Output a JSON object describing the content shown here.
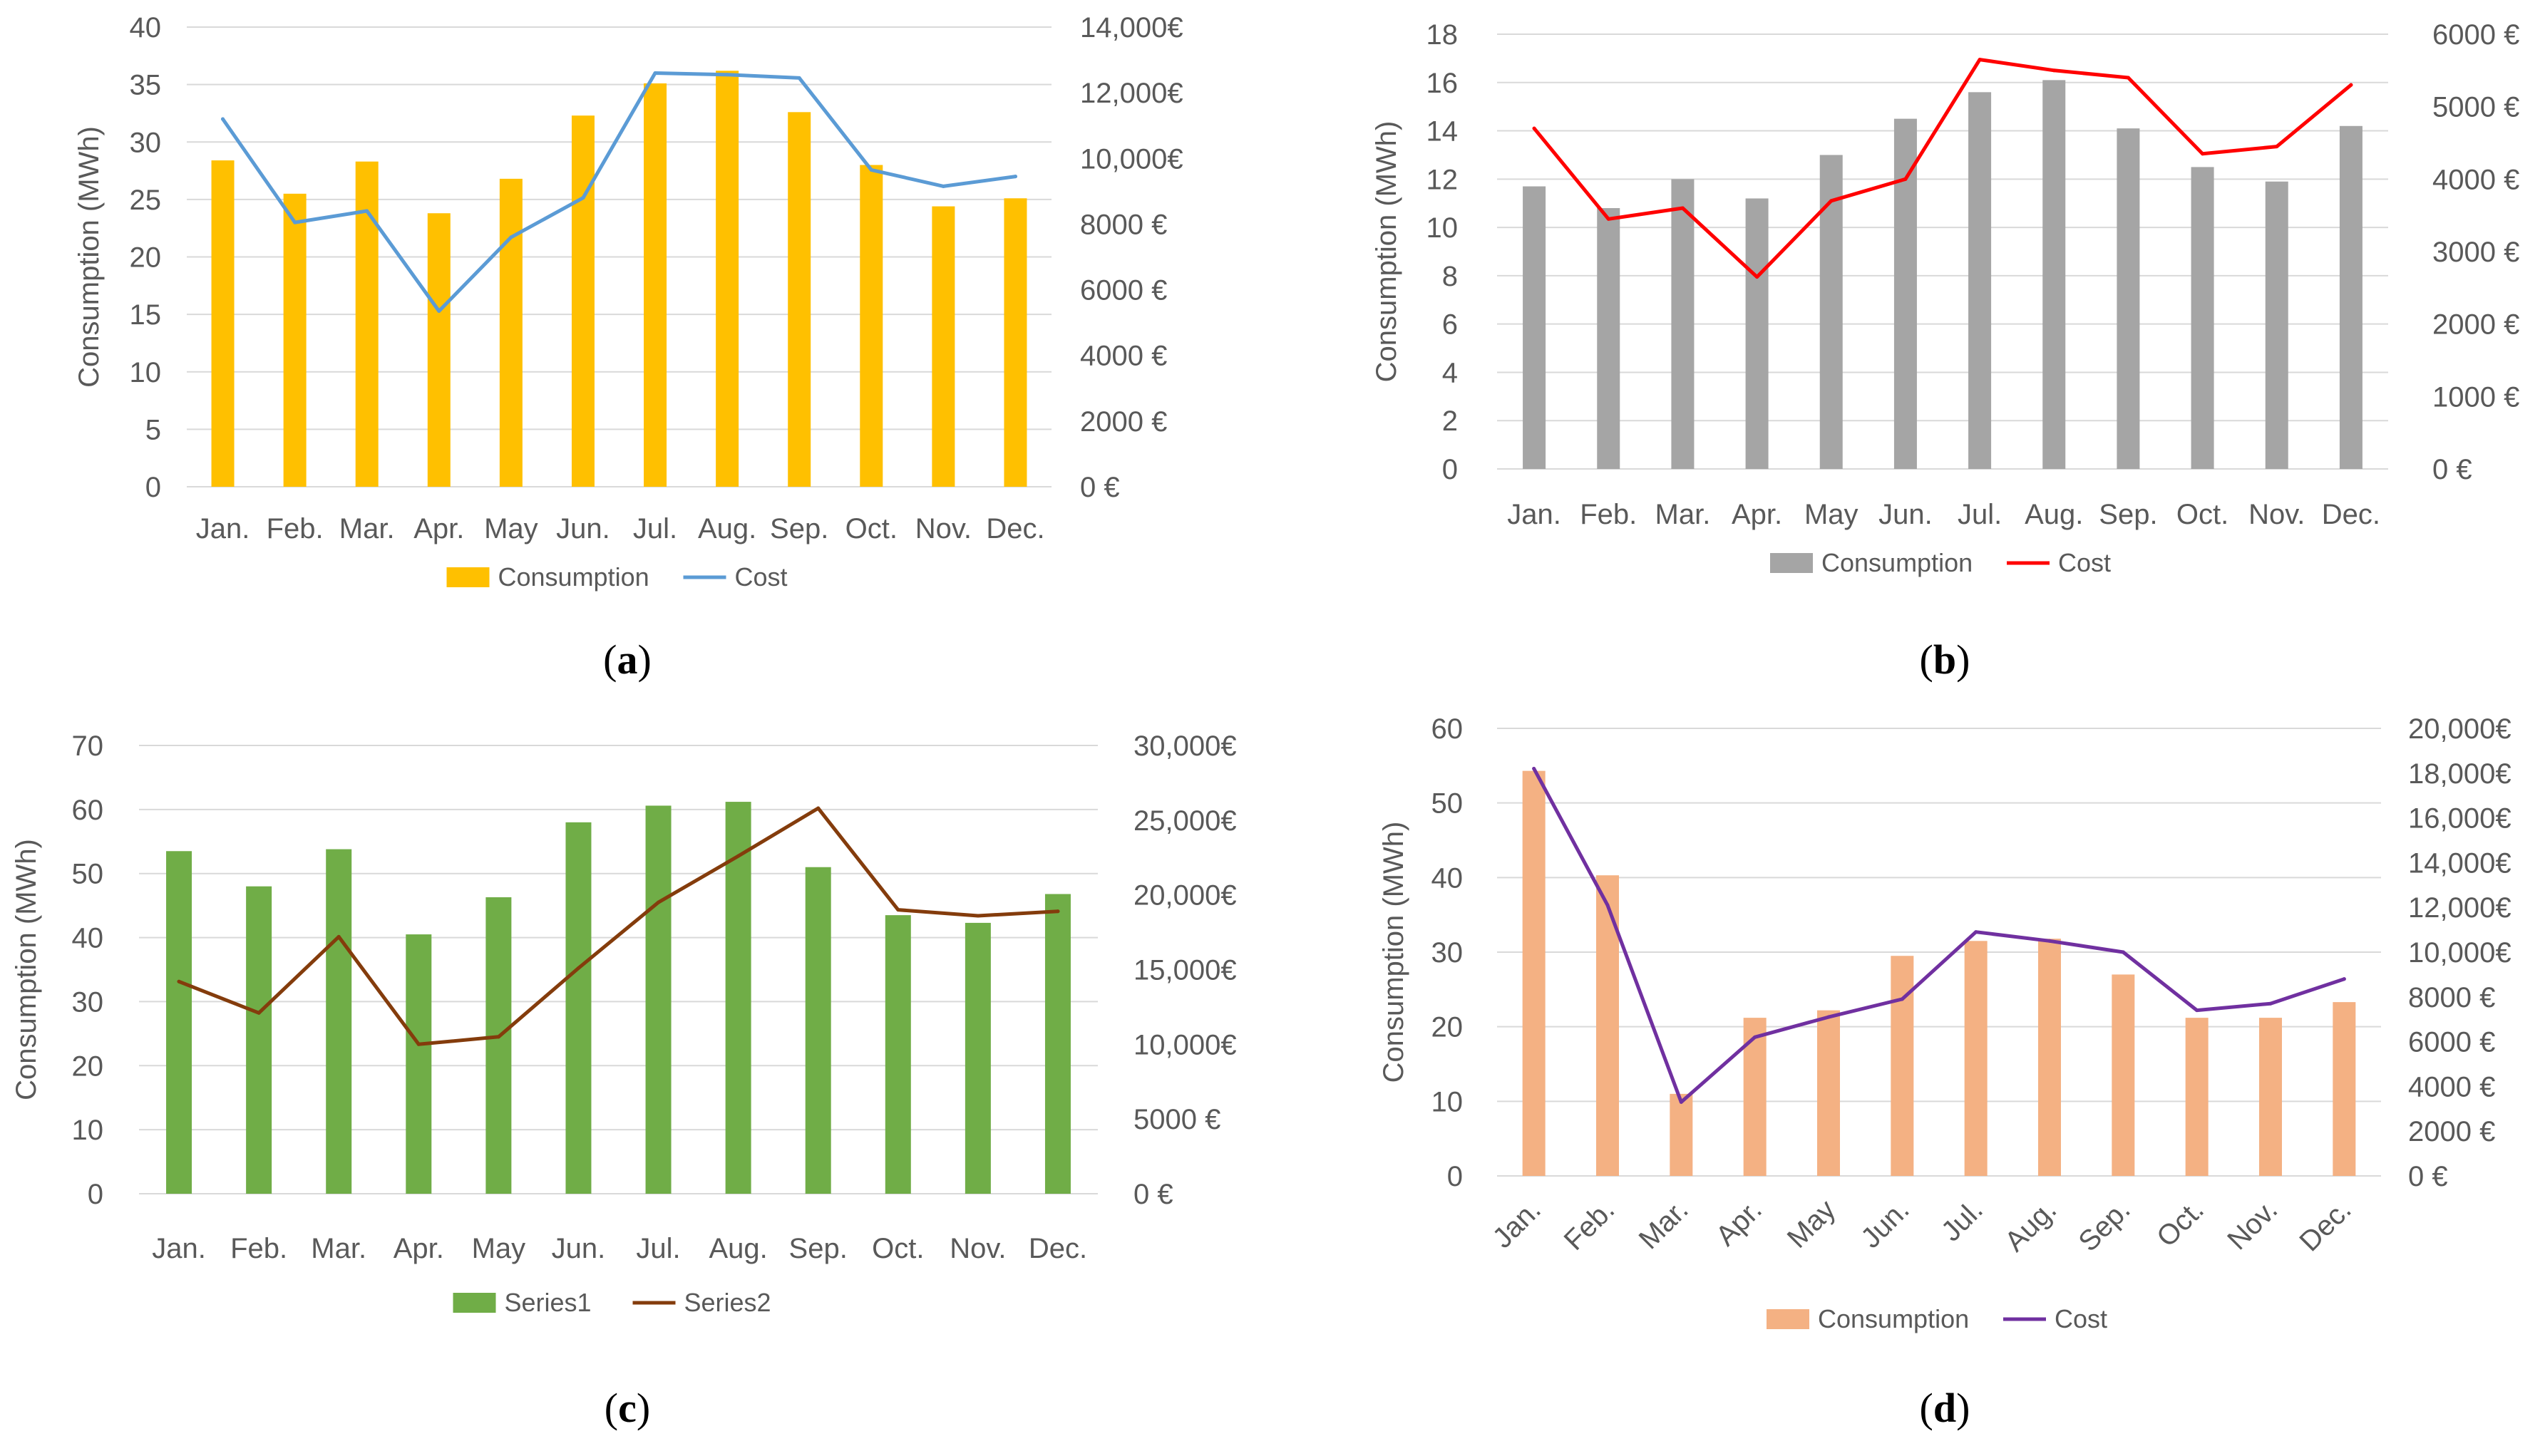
{
  "chart_data": [
    {
      "type": "bar",
      "panel_label": "a",
      "categories": [
        "Jan.",
        "Feb.",
        "Mar.",
        "Apr.",
        "May",
        "Jun.",
        "Jul.",
        "Aug.",
        "Sep.",
        "Oct.",
        "Nov.",
        "Dec."
      ],
      "series": [
        {
          "name": "Consumption",
          "kind": "bar",
          "axis": "left",
          "color": "#FFC000",
          "values": [
            28.4,
            25.5,
            28.3,
            23.8,
            26.8,
            32.3,
            35.1,
            36.2,
            32.6,
            28.0,
            24.4,
            25.1
          ]
        },
        {
          "name": "Cost",
          "kind": "line",
          "axis": "right",
          "color": "#5B9BD5",
          "values": [
            11200,
            8050,
            8400,
            5350,
            7600,
            8800,
            12600,
            12550,
            12450,
            9650,
            9150,
            9450
          ]
        }
      ],
      "ylabel": "Consumption (MWh)",
      "ylim": [
        0,
        40
      ],
      "y_ticks": [
        "0",
        "5",
        "10",
        "15",
        "20",
        "25",
        "30",
        "35",
        "40"
      ],
      "y2lim": [
        0,
        14000
      ],
      "y2_ticks": [
        "0 €",
        "2000 €",
        "4000 €",
        "6000 €",
        "8000 €",
        "10,000€",
        "12,000€",
        "14,000€"
      ],
      "legend": "bottom",
      "grid": true
    },
    {
      "type": "bar",
      "panel_label": "b",
      "categories": [
        "Jan.",
        "Feb.",
        "Mar.",
        "Apr.",
        "May",
        "Jun.",
        "Jul.",
        "Aug.",
        "Sep.",
        "Oct.",
        "Nov.",
        "Dec."
      ],
      "series": [
        {
          "name": "Consumption",
          "kind": "bar",
          "axis": "left",
          "color": "#A5A5A5",
          "values": [
            11.7,
            10.8,
            12.0,
            11.2,
            13.0,
            14.5,
            15.6,
            16.1,
            14.1,
            12.5,
            11.9,
            14.2
          ]
        },
        {
          "name": "Cost",
          "kind": "line",
          "axis": "right",
          "color": "#FF0000",
          "values": [
            4700,
            3450,
            3600,
            2650,
            3700,
            4000,
            5650,
            5500,
            5400,
            4350,
            4450,
            5300
          ]
        }
      ],
      "ylabel": "Consumption (MWh)",
      "ylim": [
        0,
        18
      ],
      "y_ticks": [
        "0",
        "2",
        "4",
        "6",
        "8",
        "10",
        "12",
        "14",
        "16",
        "18"
      ],
      "y2lim": [
        0,
        6000
      ],
      "y2_ticks": [
        "0 €",
        "1000 €",
        "2000 €",
        "3000 €",
        "4000 €",
        "5000 €",
        "6000 €"
      ],
      "legend": "bottom",
      "grid": true
    },
    {
      "type": "bar",
      "panel_label": "c",
      "categories": [
        "Jan.",
        "Feb.",
        "Mar.",
        "Apr.",
        "May",
        "Jun.",
        "Jul.",
        "Aug.",
        "Sep.",
        "Oct.",
        "Nov.",
        "Dec."
      ],
      "series": [
        {
          "name": "Series1",
          "kind": "bar",
          "axis": "left",
          "color": "#70AD47",
          "values": [
            53.5,
            48.0,
            53.8,
            40.5,
            46.3,
            58.0,
            60.6,
            61.2,
            51.0,
            43.5,
            42.3,
            46.8
          ]
        },
        {
          "name": "Series2",
          "kind": "line",
          "axis": "right",
          "color": "#843C0C",
          "values": [
            14200,
            12100,
            17200,
            10000,
            10500,
            15100,
            19500,
            22600,
            25800,
            19000,
            18600,
            18900
          ]
        }
      ],
      "ylabel": "Consumption (MWh)",
      "ylim": [
        0,
        70
      ],
      "y_ticks": [
        "0",
        "10",
        "20",
        "30",
        "40",
        "50",
        "60",
        "70"
      ],
      "y2lim": [
        0,
        30000
      ],
      "y2_ticks": [
        "0 €",
        "5000 €",
        "10,000€",
        "15,000€",
        "20,000€",
        "25,000€",
        "30,000€"
      ],
      "legend": "bottom",
      "grid": true
    },
    {
      "type": "bar",
      "panel_label": "d",
      "categories": [
        "Jan.",
        "Feb.",
        "Mar.",
        "Apr.",
        "May",
        "Jun.",
        "Jul.",
        "Aug.",
        "Sep.",
        "Oct.",
        "Nov.",
        "Dec."
      ],
      "series": [
        {
          "name": "Consumption",
          "kind": "bar",
          "axis": "left",
          "color": "#F4B183",
          "values": [
            54.3,
            40.3,
            11.0,
            21.2,
            22.2,
            29.5,
            31.5,
            31.8,
            27.0,
            21.2,
            21.2,
            23.3
          ]
        },
        {
          "name": "Cost",
          "kind": "line",
          "axis": "right",
          "color": "#7030A0",
          "values": [
            18200,
            12100,
            3300,
            6200,
            7100,
            7900,
            10900,
            10500,
            10000,
            7400,
            7700,
            8800
          ]
        }
      ],
      "ylabel": "Consumption (MWh)",
      "ylim": [
        0,
        60
      ],
      "y_ticks": [
        "0",
        "10",
        "20",
        "30",
        "40",
        "50",
        "60"
      ],
      "y2lim": [
        0,
        20000
      ],
      "y2_ticks": [
        "0 €",
        "2000 €",
        "4000 €",
        "6000 €",
        "8000 €",
        "10,000€",
        "12,000€",
        "14,000€",
        "16,000€",
        "18,000€",
        "20,000€"
      ],
      "x_tick_rotation": "rotated",
      "legend": "bottom",
      "grid": true
    }
  ]
}
